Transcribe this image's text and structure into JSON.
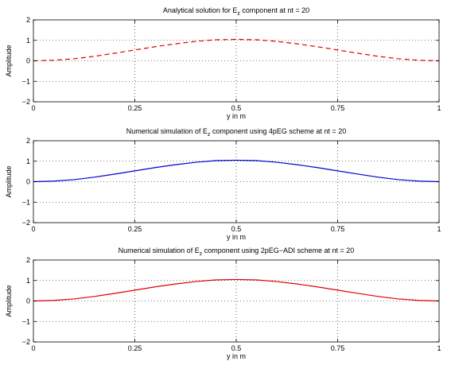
{
  "chart_data": [
    {
      "type": "line",
      "title": "Analytical solution for E",
      "title_subscript": "z",
      "title_suffix": " component at nt = 20",
      "xlabel": "y in m",
      "ylabel": "Amplitude",
      "xlim": [
        0,
        1
      ],
      "ylim": [
        -2,
        2
      ],
      "x_ticks": [
        "0",
        "0.25",
        "0.5",
        "0.75",
        "1"
      ],
      "y_ticks": [
        "−2",
        "−1",
        "0",
        "1",
        "2"
      ],
      "grid": true,
      "series": [
        {
          "style": "dashed",
          "color": "#e00000",
          "x": [
            0,
            0.05,
            0.1,
            0.15,
            0.2,
            0.25,
            0.3,
            0.35,
            0.4,
            0.45,
            0.5,
            0.55,
            0.6,
            0.65,
            0.7,
            0.75,
            0.8,
            0.85,
            0.9,
            0.95,
            1
          ],
          "y": [
            0.0,
            0.03,
            0.1,
            0.22,
            0.37,
            0.53,
            0.69,
            0.83,
            0.95,
            1.03,
            1.05,
            1.03,
            0.95,
            0.83,
            0.69,
            0.53,
            0.37,
            0.22,
            0.1,
            0.03,
            0.0
          ]
        }
      ]
    },
    {
      "type": "line",
      "title": "Numerical simulation of E",
      "title_subscript": "z",
      "title_suffix": " component using 4pEG scheme at nt = 20",
      "xlabel": "y in m",
      "ylabel": "Amplitude",
      "xlim": [
        0,
        1
      ],
      "ylim": [
        -2,
        2
      ],
      "x_ticks": [
        "0",
        "0.25",
        "0.5",
        "0.75",
        "1"
      ],
      "y_ticks": [
        "−2",
        "−1",
        "0",
        "1",
        "2"
      ],
      "grid": true,
      "series": [
        {
          "style": "solid",
          "color": "#0000d0",
          "x": [
            0,
            0.05,
            0.1,
            0.15,
            0.2,
            0.25,
            0.3,
            0.35,
            0.4,
            0.45,
            0.5,
            0.55,
            0.6,
            0.65,
            0.7,
            0.75,
            0.8,
            0.85,
            0.9,
            0.95,
            1
          ],
          "y": [
            0.0,
            0.03,
            0.1,
            0.22,
            0.37,
            0.53,
            0.69,
            0.83,
            0.95,
            1.03,
            1.05,
            1.03,
            0.95,
            0.83,
            0.69,
            0.53,
            0.37,
            0.22,
            0.1,
            0.03,
            0.0
          ]
        }
      ]
    },
    {
      "type": "line",
      "title": "Numerical simulation of E",
      "title_subscript": "z",
      "title_suffix": " component using 2pEG−ADI scheme at nt = 20",
      "xlabel": "y in m",
      "ylabel": "Amplitude",
      "xlim": [
        0,
        1
      ],
      "ylim": [
        -2,
        2
      ],
      "x_ticks": [
        "0",
        "0.25",
        "0.5",
        "0.75",
        "1"
      ],
      "y_ticks": [
        "−2",
        "−1",
        "0",
        "1",
        "2"
      ],
      "grid": true,
      "series": [
        {
          "style": "solid",
          "color": "#e00000",
          "x": [
            0,
            0.05,
            0.1,
            0.15,
            0.2,
            0.25,
            0.3,
            0.35,
            0.4,
            0.45,
            0.5,
            0.55,
            0.6,
            0.65,
            0.7,
            0.75,
            0.8,
            0.85,
            0.9,
            0.95,
            1
          ],
          "y": [
            0.0,
            0.03,
            0.1,
            0.22,
            0.37,
            0.53,
            0.69,
            0.83,
            0.95,
            1.03,
            1.05,
            1.03,
            0.95,
            0.83,
            0.69,
            0.53,
            0.37,
            0.22,
            0.1,
            0.03,
            0.0
          ]
        }
      ]
    }
  ]
}
